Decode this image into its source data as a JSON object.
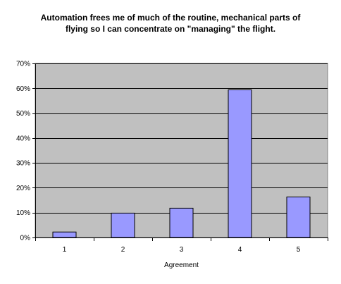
{
  "chart_data": {
    "type": "bar",
    "title_lines": [
      "Automation frees me of much of the routine, mechanical parts of",
      "flying so I can concentrate on \"managing\" the flight."
    ],
    "categories": [
      "1",
      "2",
      "3",
      "4",
      "5"
    ],
    "values": [
      2.2,
      9.8,
      11.8,
      59.4,
      16.3
    ],
    "xlabel": "Agreement",
    "ylabel": "",
    "ylim": [
      0,
      70
    ],
    "yticks": [
      0,
      10,
      20,
      30,
      40,
      50,
      60,
      70
    ],
    "ytick_labels": [
      "0%",
      "10%",
      "20%",
      "30%",
      "40%",
      "50%",
      "60%",
      "70%"
    ],
    "grid": true,
    "legend": "none",
    "colors": {
      "plot_background": "#c0c0c0",
      "bar_fill": "#9999ff",
      "bar_stroke": "#000000",
      "gridline": "#000000"
    }
  }
}
